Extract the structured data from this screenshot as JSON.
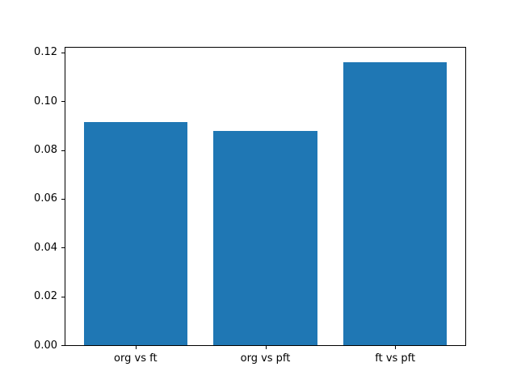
{
  "figure": {
    "background_color": "#ffffff",
    "spine_color": "#000000",
    "text_color": "#000000"
  },
  "chart_data": {
    "type": "bar",
    "title": "",
    "xlabel": "",
    "ylabel": "",
    "categories": [
      "org vs ft",
      "org vs pft",
      "ft vs pft"
    ],
    "values": [
      0.0916,
      0.0878,
      0.1161
    ],
    "bar_color": "#1f77b4",
    "bar_width_fraction": 0.8,
    "xlim": [
      -0.54,
      2.54
    ],
    "ylim": [
      0,
      0.1219
    ],
    "yticks": [
      0.0,
      0.02,
      0.04,
      0.06,
      0.08,
      0.1,
      0.12
    ],
    "ytick_labels": [
      "0.00",
      "0.02",
      "0.04",
      "0.06",
      "0.08",
      "0.10",
      "0.12"
    ],
    "grid": false,
    "legend": null
  }
}
